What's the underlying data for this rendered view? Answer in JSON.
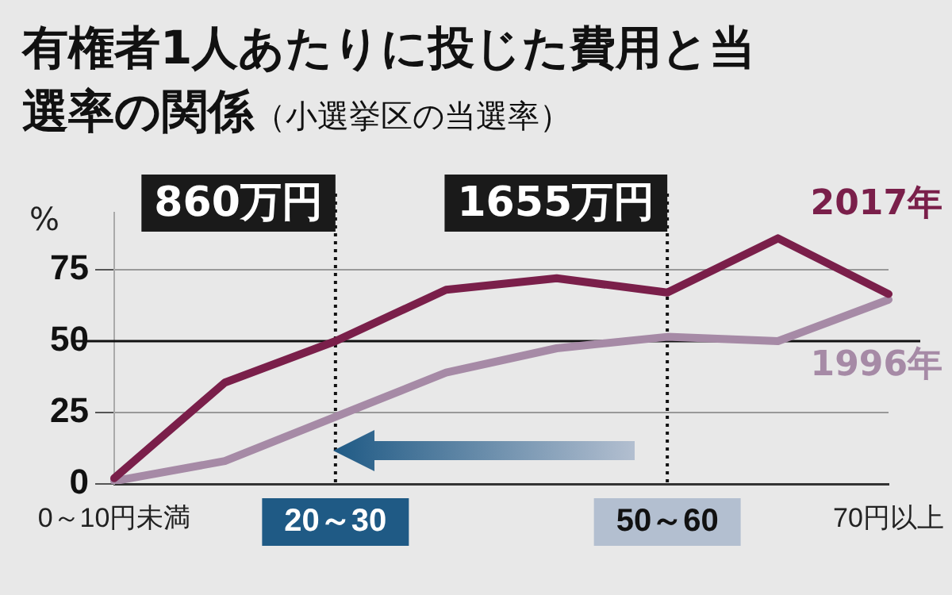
{
  "chart_data": {
    "type": "line",
    "title": "有権者1人あたりに投じた費用と当選率の関係",
    "subtitle": "（小選挙区の当選率）",
    "ylabel": "%",
    "categories": [
      "0～10円未満",
      null,
      "20～30",
      null,
      null,
      "50～60",
      null,
      "70円以上"
    ],
    "series": [
      {
        "name": "2017年",
        "color": "#7a1f4a",
        "values": [
          2,
          35.5,
          50,
          68,
          72,
          67,
          86,
          66.5
        ]
      },
      {
        "name": "1996年",
        "color": "#a68aa6",
        "values": [
          1,
          8,
          23.5,
          39,
          47.5,
          51.5,
          50,
          64.5
        ]
      }
    ],
    "ylim": [
      0,
      95
    ],
    "yticks": [
      0,
      25,
      50,
      75
    ],
    "grid": "y",
    "legend": false,
    "marker": "none",
    "line_style": "solid",
    "ref_lines": [
      {
        "axis": "x",
        "value": "20～30",
        "label": "860万円",
        "color": "#111111",
        "line_style": "dotted"
      },
      {
        "axis": "x",
        "value": "50～60",
        "label": "1655万円",
        "color": "#111111",
        "line_style": "dotted"
      },
      {
        "axis": "y",
        "value": 50,
        "color": "#111111",
        "line_style": "solid"
      }
    ]
  }
}
